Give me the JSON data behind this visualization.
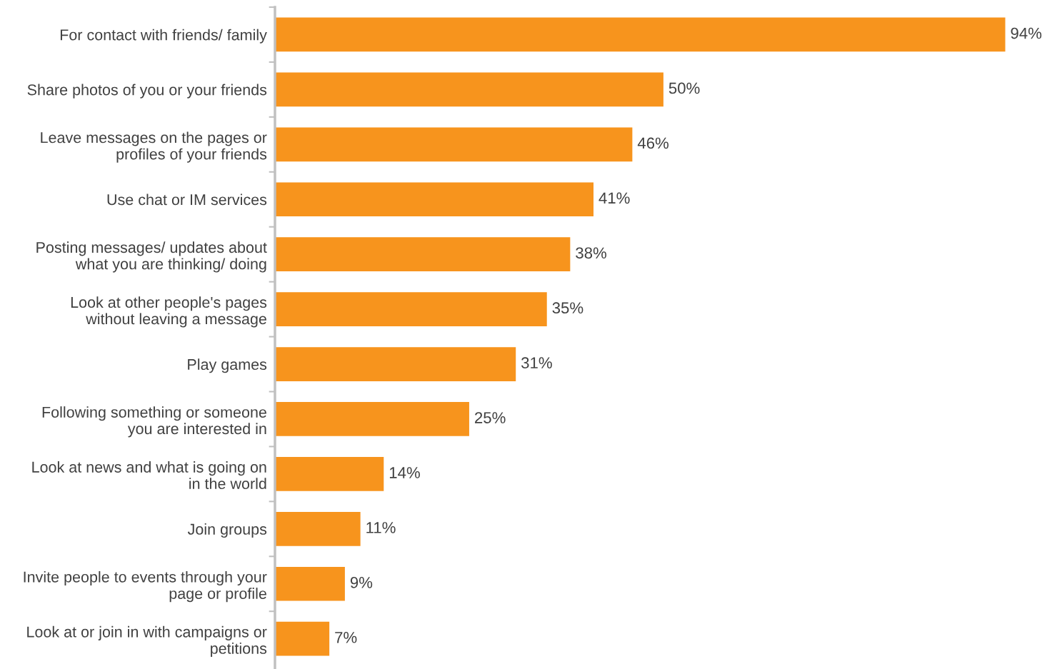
{
  "chart_data": {
    "type": "bar",
    "orientation": "horizontal",
    "categories": [
      "For contact with friends/ family",
      "Share photos of you or your friends",
      "Leave messages on the pages or\nprofiles of your friends",
      "Use chat or IM services",
      "Posting messages/ updates about\nwhat you are thinking/ doing",
      "Look at other people's pages\nwithout leaving a message",
      "Play games",
      "Following something or someone\nyou are interested in",
      "Look at news and what is going on\nin the world",
      "Join groups",
      "Invite people to events through your\npage or profile",
      "Look at or join in with campaigns or\npetitions"
    ],
    "values": [
      94,
      50,
      46,
      41,
      38,
      35,
      31,
      25,
      14,
      11,
      9,
      7
    ],
    "value_labels": [
      "94%",
      "50%",
      "46%",
      "41%",
      "38%",
      "35%",
      "31%",
      "25%",
      "14%",
      "11%",
      "9%",
      "7%"
    ],
    "color": "#f7941d",
    "tick_labels": "y",
    "grid": false,
    "legend": false
  }
}
